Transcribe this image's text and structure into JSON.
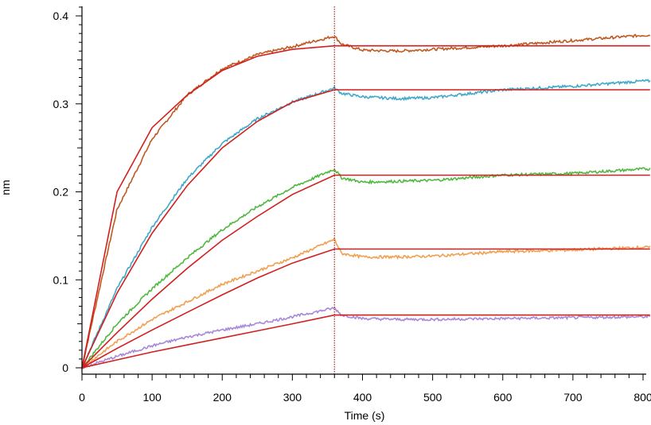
{
  "chart_data": {
    "type": "line",
    "xlabel": "Time (s)",
    "ylabel": "nm",
    "xlim": [
      0,
      810
    ],
    "ylim": [
      -0.006,
      0.41
    ],
    "x_ticks": [
      0,
      100,
      200,
      300,
      400,
      500,
      600,
      700,
      800
    ],
    "y_ticks": [
      0,
      0.1,
      0.2,
      0.3,
      0.4
    ],
    "x_tick_labels": [
      "0",
      "100",
      "200",
      "300",
      "400",
      "500",
      "600",
      "700",
      "800"
    ],
    "y_tick_labels": [
      "0",
      "0.1",
      "0.2",
      "0.3",
      "0.4"
    ],
    "vline_x": 360,
    "vline_color": "#b22222",
    "fit_color": "#d21f1f",
    "series": [
      {
        "color": "#c0581f",
        "values": [
          [
            0,
            0
          ],
          [
            50,
            0.18
          ],
          [
            100,
            0.26
          ],
          [
            150,
            0.31
          ],
          [
            200,
            0.34
          ],
          [
            250,
            0.356
          ],
          [
            300,
            0.365
          ],
          [
            360,
            0.377
          ],
          [
            370,
            0.368
          ],
          [
            400,
            0.361
          ],
          [
            450,
            0.36
          ],
          [
            500,
            0.362
          ],
          [
            600,
            0.366
          ],
          [
            700,
            0.372
          ],
          [
            800,
            0.378
          ]
        ]
      },
      {
        "color": "#40a8c8",
        "values": [
          [
            0,
            0
          ],
          [
            50,
            0.09
          ],
          [
            100,
            0.16
          ],
          [
            150,
            0.215
          ],
          [
            200,
            0.255
          ],
          [
            250,
            0.283
          ],
          [
            300,
            0.302
          ],
          [
            360,
            0.318
          ],
          [
            370,
            0.312
          ],
          [
            400,
            0.308
          ],
          [
            450,
            0.306
          ],
          [
            500,
            0.307
          ],
          [
            600,
            0.316
          ],
          [
            700,
            0.32
          ],
          [
            800,
            0.326
          ]
        ]
      },
      {
        "color": "#50b840",
        "values": [
          [
            0,
            0
          ],
          [
            50,
            0.05
          ],
          [
            100,
            0.09
          ],
          [
            150,
            0.125
          ],
          [
            200,
            0.157
          ],
          [
            250,
            0.183
          ],
          [
            300,
            0.205
          ],
          [
            360,
            0.226
          ],
          [
            370,
            0.216
          ],
          [
            400,
            0.211
          ],
          [
            450,
            0.212
          ],
          [
            500,
            0.213
          ],
          [
            600,
            0.219
          ],
          [
            700,
            0.221
          ],
          [
            800,
            0.226
          ]
        ]
      },
      {
        "color": "#f0a050",
        "values": [
          [
            0,
            0
          ],
          [
            50,
            0.03
          ],
          [
            100,
            0.055
          ],
          [
            150,
            0.075
          ],
          [
            200,
            0.095
          ],
          [
            250,
            0.11
          ],
          [
            300,
            0.125
          ],
          [
            360,
            0.146
          ],
          [
            370,
            0.13
          ],
          [
            400,
            0.126
          ],
          [
            450,
            0.126
          ],
          [
            500,
            0.127
          ],
          [
            600,
            0.132
          ],
          [
            700,
            0.134
          ],
          [
            800,
            0.137
          ]
        ]
      },
      {
        "color": "#a888d8",
        "values": [
          [
            0,
            0
          ],
          [
            50,
            0.013
          ],
          [
            100,
            0.025
          ],
          [
            150,
            0.035
          ],
          [
            200,
            0.043
          ],
          [
            250,
            0.05
          ],
          [
            300,
            0.058
          ],
          [
            360,
            0.068
          ],
          [
            370,
            0.06
          ],
          [
            400,
            0.056
          ],
          [
            450,
            0.055
          ],
          [
            500,
            0.055
          ],
          [
            600,
            0.056
          ],
          [
            700,
            0.057
          ],
          [
            800,
            0.058
          ]
        ]
      }
    ],
    "fits": [
      {
        "values": [
          [
            0,
            0
          ],
          [
            50,
            0.2
          ],
          [
            100,
            0.273
          ],
          [
            150,
            0.31
          ],
          [
            200,
            0.338
          ],
          [
            250,
            0.354
          ],
          [
            300,
            0.362
          ],
          [
            360,
            0.366
          ],
          [
            810,
            0.366
          ]
        ]
      },
      {
        "values": [
          [
            0,
            0
          ],
          [
            50,
            0.085
          ],
          [
            100,
            0.153
          ],
          [
            150,
            0.207
          ],
          [
            200,
            0.25
          ],
          [
            250,
            0.28
          ],
          [
            300,
            0.302
          ],
          [
            360,
            0.316
          ],
          [
            810,
            0.316
          ]
        ]
      },
      {
        "values": [
          [
            0,
            0
          ],
          [
            50,
            0.04
          ],
          [
            100,
            0.078
          ],
          [
            150,
            0.113
          ],
          [
            200,
            0.145
          ],
          [
            250,
            0.172
          ],
          [
            300,
            0.197
          ],
          [
            360,
            0.219
          ],
          [
            810,
            0.219
          ]
        ]
      },
      {
        "values": [
          [
            0,
            0
          ],
          [
            50,
            0.022
          ],
          [
            100,
            0.043
          ],
          [
            150,
            0.063
          ],
          [
            200,
            0.083
          ],
          [
            250,
            0.102
          ],
          [
            300,
            0.119
          ],
          [
            360,
            0.135
          ],
          [
            810,
            0.135
          ]
        ]
      },
      {
        "values": [
          [
            0,
            0
          ],
          [
            50,
            0.009
          ],
          [
            100,
            0.018
          ],
          [
            150,
            0.026
          ],
          [
            200,
            0.034
          ],
          [
            250,
            0.042
          ],
          [
            300,
            0.05
          ],
          [
            360,
            0.06
          ],
          [
            810,
            0.06
          ]
        ]
      }
    ]
  }
}
